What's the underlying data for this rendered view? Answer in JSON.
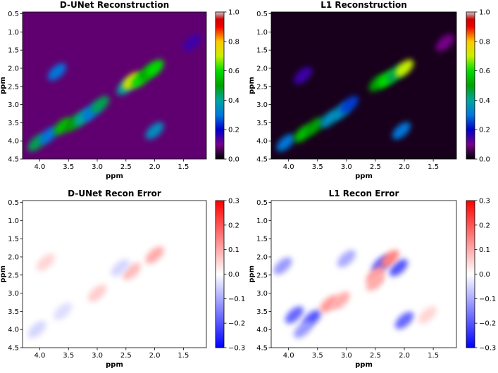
{
  "chart_data": [
    {
      "type": "heatmap",
      "title": "D-UNet Reconstruction",
      "xlabel": "ppm",
      "ylabel": "ppm",
      "xlim": [
        4.3,
        1.1
      ],
      "ylim": [
        4.5,
        0.45
      ],
      "xticks": [
        {
          "value": 4,
          "label": "4.0"
        },
        3.5,
        {
          "value": 3,
          "label": "3.0"
        },
        2.5,
        {
          "value": 2,
          "label": "2.0"
        },
        1.5
      ],
      "yticks": [
        0.5,
        {
          "value": 1,
          "label": "1.0"
        },
        1.5,
        {
          "value": 2,
          "label": "2.0"
        },
        2.5,
        {
          "value": 3,
          "label": "3.0"
        },
        3.5,
        {
          "value": 4,
          "label": "4.0"
        },
        4.5
      ],
      "colormap": "nipy_spectral",
      "clim": [
        0,
        1
      ],
      "cticks": [
        {
          "value": 0,
          "label": "0.0"
        },
        0.2,
        0.4,
        0.6,
        0.8,
        {
          "value": 1,
          "label": "1.0"
        }
      ],
      "background": 0.08,
      "x": [
        4.05,
        3.85,
        3.6,
        3.4,
        3.25,
        3.1,
        2.95,
        2.5,
        2.4,
        2.25,
        2.1,
        2.0,
        3.7,
        2.0,
        1.35
      ],
      "y": [
        4.05,
        3.85,
        3.6,
        3.5,
        3.35,
        3.2,
        3.0,
        2.5,
        2.35,
        2.3,
        2.1,
        2.0,
        2.1,
        3.72,
        1.3
      ],
      "values": [
        0.45,
        0.3,
        0.55,
        0.5,
        0.4,
        0.3,
        0.45,
        0.4,
        0.75,
        0.6,
        0.5,
        0.6,
        0.3,
        0.35,
        0.15
      ]
    },
    {
      "type": "heatmap",
      "title": "L1 Reconstruction",
      "xlabel": "ppm",
      "ylabel": "ppm",
      "xlim": [
        4.3,
        1.1
      ],
      "ylim": [
        4.5,
        0.45
      ],
      "xticks": [
        {
          "value": 4,
          "label": "4.0"
        },
        3.5,
        {
          "value": 3,
          "label": "3.0"
        },
        2.5,
        {
          "value": 2,
          "label": "2.0"
        },
        1.5
      ],
      "yticks": [
        0.5,
        {
          "value": 1,
          "label": "1.0"
        },
        1.5,
        {
          "value": 2,
          "label": "2.0"
        },
        2.5,
        {
          "value": 3,
          "label": "3.0"
        },
        3.5,
        {
          "value": 4,
          "label": "4.0"
        },
        4.5
      ],
      "colormap": "nipy_spectral",
      "clim": [
        0,
        1
      ],
      "cticks": [
        {
          "value": 0,
          "label": "0.0"
        },
        0.2,
        0.4,
        0.6,
        0.8,
        {
          "value": 1,
          "label": "1.0"
        }
      ],
      "background": 0.02,
      "x": [
        4.05,
        3.75,
        3.55,
        3.3,
        3.1,
        2.95,
        2.45,
        2.3,
        2.15,
        2.0,
        3.75,
        2.05,
        1.3
      ],
      "y": [
        4.05,
        3.8,
        3.6,
        3.4,
        3.2,
        3.0,
        2.4,
        2.3,
        2.15,
        2.0,
        2.2,
        3.72,
        1.3
      ],
      "values": [
        0.3,
        0.55,
        0.5,
        0.35,
        0.35,
        0.25,
        0.5,
        0.6,
        0.45,
        0.7,
        0.15,
        0.3,
        0.1
      ]
    },
    {
      "type": "heatmap",
      "title": "D-UNet Recon Error",
      "xlabel": "ppm",
      "ylabel": "ppm",
      "xlim": [
        4.3,
        1.1
      ],
      "ylim": [
        4.5,
        0.45
      ],
      "xticks": [
        {
          "value": 4,
          "label": "4.0"
        },
        3.5,
        {
          "value": 3,
          "label": "3.0"
        },
        2.5,
        {
          "value": 2,
          "label": "2.0"
        },
        1.5
      ],
      "yticks": [
        0.5,
        {
          "value": 1,
          "label": "1.0"
        },
        1.5,
        {
          "value": 2,
          "label": "2.0"
        },
        2.5,
        {
          "value": 3,
          "label": "3.0"
        },
        3.5,
        {
          "value": 4,
          "label": "4.0"
        },
        4.5
      ],
      "colormap": "bwr",
      "clim": [
        -0.3,
        0.3
      ],
      "cticks": [
        {
          "value": -0.3,
          "label": "−0.3"
        },
        {
          "value": -0.2,
          "label": "−0.2"
        },
        {
          "value": -0.1,
          "label": "−0.1"
        },
        {
          "value": 0,
          "label": "0.0"
        },
        0.1,
        0.2,
        0.3
      ],
      "background": 0,
      "x": [
        2.4,
        2.0,
        3.0,
        3.6,
        4.05,
        2.6,
        3.9
      ],
      "y": [
        2.4,
        1.95,
        3.0,
        3.5,
        4.0,
        2.3,
        2.15
      ],
      "values": [
        0.08,
        0.1,
        0.06,
        -0.04,
        -0.05,
        -0.05,
        0.05
      ]
    },
    {
      "type": "heatmap",
      "title": "L1 Recon Error",
      "xlabel": "ppm",
      "ylabel": "ppm",
      "xlim": [
        4.3,
        1.1
      ],
      "ylim": [
        4.5,
        0.45
      ],
      "xticks": [
        {
          "value": 4,
          "label": "4.0"
        },
        3.5,
        {
          "value": 3,
          "label": "3.0"
        },
        2.5,
        {
          "value": 2,
          "label": "2.0"
        },
        1.5
      ],
      "yticks": [
        0.5,
        {
          "value": 1,
          "label": "1.0"
        },
        1.5,
        {
          "value": 2,
          "label": "2.0"
        },
        2.5,
        {
          "value": 3,
          "label": "3.0"
        },
        3.5,
        {
          "value": 4,
          "label": "4.0"
        },
        4.5
      ],
      "colormap": "bwr",
      "clim": [
        -0.3,
        0.3
      ],
      "cticks": [
        {
          "value": -0.3,
          "label": "−0.3"
        },
        {
          "value": -0.2,
          "label": "−0.2"
        },
        {
          "value": -0.1,
          "label": "−0.1"
        },
        {
          "value": 0,
          "label": "0.0"
        },
        0.1,
        0.2,
        0.3
      ],
      "background": 0,
      "x": [
        2.4,
        2.1,
        2.5,
        2.25,
        3.6,
        3.9,
        3.3,
        3.1,
        2.0,
        2.5,
        4.1,
        3.0,
        1.6,
        3.75
      ],
      "y": [
        2.2,
        2.3,
        2.5,
        2.05,
        3.7,
        3.6,
        3.3,
        3.2,
        3.75,
        2.7,
        2.25,
        2.05,
        3.6,
        4.0
      ],
      "values": [
        -0.2,
        -0.2,
        0.12,
        0.15,
        -0.2,
        -0.18,
        0.12,
        0.1,
        -0.18,
        0.1,
        -0.12,
        -0.1,
        0.05,
        -0.12
      ]
    }
  ]
}
